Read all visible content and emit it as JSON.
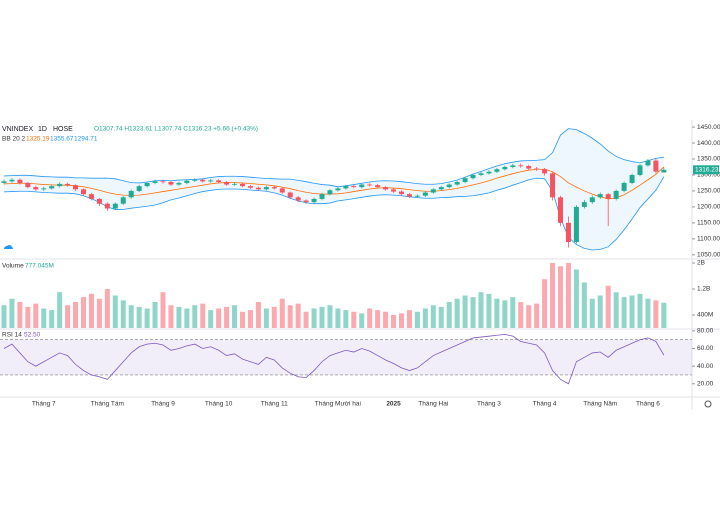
{
  "chart_data": {
    "type": "candlestick",
    "symbol": "VNINDEX",
    "interval": "1D",
    "exchange": "HOSE",
    "ohlc_label": "O1307.74 H1323.61 L1307.74 C1316.23 +5.66 (+0.43%)",
    "up_color": "#22ab94",
    "down_color": "#f7525f",
    "categories": [
      null,
      null,
      null,
      null,
      null,
      "Tháng 7",
      null,
      null,
      null,
      null,
      null,
      null,
      null,
      "Tháng Tám",
      null,
      null,
      null,
      null,
      null,
      null,
      "Tháng 9",
      null,
      null,
      null,
      null,
      null,
      null,
      "Tháng 10",
      null,
      null,
      null,
      null,
      null,
      null,
      "Tháng 11",
      null,
      null,
      null,
      null,
      null,
      null,
      null,
      "Tháng Mười hai",
      null,
      null,
      null,
      null,
      null,
      null,
      "2025",
      null,
      null,
      null,
      null,
      "Tháng Hai",
      null,
      null,
      null,
      null,
      null,
      null,
      "Tháng 3",
      null,
      null,
      null,
      null,
      null,
      null,
      "Tháng 4",
      null,
      null,
      null,
      null,
      null,
      null,
      "Tháng Năm",
      null,
      null,
      null,
      null,
      null,
      "Tháng 6",
      null,
      null
    ],
    "open": [
      1275,
      1280,
      1285,
      1275,
      1262,
      1255,
      1258,
      1265,
      1272,
      1268,
      1255,
      1240,
      1225,
      1210,
      1195,
      1210,
      1230,
      1250,
      1265,
      1275,
      1280,
      1278,
      1270,
      1275,
      1282,
      1285,
      1280,
      1283,
      1278,
      1270,
      1272,
      1265,
      1260,
      1255,
      1262,
      1258,
      1245,
      1230,
      1220,
      1215,
      1225,
      1240,
      1252,
      1258,
      1265,
      1262,
      1270,
      1268,
      1262,
      1255,
      1248,
      1240,
      1232,
      1235,
      1245,
      1255,
      1262,
      1270,
      1278,
      1290,
      1300,
      1305,
      1310,
      1318,
      1325,
      1330,
      1328,
      1320,
      1318,
      1305,
      1230,
      1150,
      1090,
      1200,
      1215,
      1230,
      1240,
      1225,
      1250,
      1275,
      1300,
      1330,
      1345,
      1307.74
    ],
    "high": [
      1286,
      1290,
      1289,
      1278,
      1266,
      1263,
      1270,
      1277,
      1276,
      1271,
      1258,
      1244,
      1228,
      1214,
      1214,
      1234,
      1254,
      1269,
      1279,
      1285,
      1285,
      1282,
      1279,
      1286,
      1290,
      1289,
      1288,
      1287,
      1281,
      1277,
      1275,
      1269,
      1264,
      1266,
      1266,
      1261,
      1248,
      1234,
      1224,
      1229,
      1244,
      1256,
      1262,
      1269,
      1269,
      1274,
      1274,
      1272,
      1265,
      1259,
      1252,
      1244,
      1239,
      1249,
      1259,
      1266,
      1274,
      1282,
      1294,
      1304,
      1310,
      1315,
      1322,
      1329,
      1335,
      1336,
      1332,
      1325,
      1322,
      1308,
      1235,
      1170,
      1205,
      1222,
      1236,
      1245,
      1244,
      1254,
      1279,
      1304,
      1334,
      1350,
      1352,
      1323.61
    ],
    "low": [
      1270,
      1276,
      1270,
      1258,
      1250,
      1250,
      1254,
      1261,
      1263,
      1250,
      1235,
      1220,
      1203,
      1188,
      1190,
      1206,
      1226,
      1246,
      1261,
      1271,
      1273,
      1266,
      1266,
      1271,
      1278,
      1276,
      1276,
      1274,
      1266,
      1266,
      1261,
      1256,
      1250,
      1251,
      1254,
      1241,
      1226,
      1215,
      1210,
      1211,
      1221,
      1236,
      1248,
      1254,
      1258,
      1258,
      1264,
      1258,
      1251,
      1244,
      1236,
      1228,
      1228,
      1231,
      1241,
      1251,
      1258,
      1266,
      1274,
      1286,
      1296,
      1301,
      1306,
      1314,
      1321,
      1323,
      1316,
      1313,
      1298,
      1220,
      1140,
      1073,
      1085,
      1195,
      1210,
      1225,
      1140,
      1220,
      1246,
      1271,
      1296,
      1326,
      1305,
      1307.74
    ],
    "close": [
      1280,
      1285,
      1275,
      1262,
      1255,
      1258,
      1265,
      1272,
      1268,
      1255,
      1240,
      1225,
      1210,
      1195,
      1210,
      1230,
      1250,
      1265,
      1275,
      1280,
      1278,
      1270,
      1275,
      1282,
      1285,
      1280,
      1283,
      1278,
      1270,
      1272,
      1265,
      1260,
      1255,
      1262,
      1258,
      1245,
      1230,
      1220,
      1215,
      1225,
      1240,
      1252,
      1258,
      1265,
      1262,
      1270,
      1268,
      1262,
      1255,
      1248,
      1240,
      1232,
      1235,
      1245,
      1255,
      1262,
      1270,
      1278,
      1290,
      1300,
      1305,
      1310,
      1318,
      1325,
      1330,
      1328,
      1320,
      1318,
      1305,
      1230,
      1150,
      1090,
      1200,
      1215,
      1230,
      1240,
      1225,
      1250,
      1275,
      1300,
      1330,
      1345,
      1310.57,
      1316.23
    ],
    "ylim": [
      1040,
      1469
    ],
    "yticks": [
      {
        "value": 1050,
        "label": "1050.00"
      },
      {
        "value": 1100,
        "label": "1100.00"
      },
      {
        "value": 1150,
        "label": "1150.00"
      },
      {
        "value": 1200,
        "label": "1200.00"
      },
      {
        "value": 1250,
        "label": "1250.00"
      },
      {
        "value": 1300,
        "label": "1300.00"
      },
      {
        "value": 1350,
        "label": "1350.00"
      },
      {
        "value": 1400,
        "label": "1400.00"
      },
      {
        "value": 1450,
        "label": "1450.00"
      }
    ],
    "bb": {
      "name": "BB 20 2",
      "middle_color": "#ff6d00",
      "band_color": "#2196f3",
      "middle": [
        1272,
        1273,
        1274,
        1274,
        1272,
        1270,
        1269,
        1268,
        1268,
        1266,
        1263,
        1258,
        1252,
        1245,
        1240,
        1237,
        1236,
        1237,
        1240,
        1244,
        1248,
        1252,
        1256,
        1260,
        1264,
        1268,
        1272,
        1275,
        1276,
        1276,
        1275,
        1273,
        1271,
        1269,
        1266,
        1262,
        1257,
        1251,
        1246,
        1242,
        1240,
        1240,
        1241,
        1244,
        1248,
        1252,
        1256,
        1259,
        1260,
        1259,
        1257,
        1254,
        1251,
        1249,
        1249,
        1251,
        1254,
        1258,
        1263,
        1269,
        1275,
        1282,
        1290,
        1297,
        1304,
        1310,
        1315,
        1318,
        1318,
        1310,
        1295,
        1275,
        1262,
        1250,
        1240,
        1232,
        1225,
        1228,
        1238,
        1252,
        1268,
        1285,
        1302,
        1325.19
      ],
      "upper": [
        1297,
        1298,
        1299,
        1299,
        1297,
        1295,
        1294,
        1293,
        1293,
        1291,
        1291,
        1290,
        1290,
        1290,
        1288,
        1282,
        1276,
        1275,
        1278,
        1282,
        1283,
        1282,
        1284,
        1285,
        1286,
        1288,
        1292,
        1295,
        1296,
        1296,
        1295,
        1293,
        1291,
        1289,
        1288,
        1287,
        1287,
        1283,
        1279,
        1274,
        1270,
        1268,
        1263,
        1266,
        1270,
        1274,
        1278,
        1281,
        1282,
        1281,
        1279,
        1276,
        1273,
        1271,
        1271,
        1273,
        1278,
        1284,
        1293,
        1303,
        1311,
        1320,
        1328,
        1335,
        1340,
        1344,
        1345,
        1346,
        1348,
        1370,
        1425,
        1445,
        1442,
        1430,
        1415,
        1397,
        1375,
        1358,
        1348,
        1342,
        1338,
        1345,
        1352,
        1355.67
      ],
      "lower": [
        1247,
        1248,
        1249,
        1249,
        1247,
        1245,
        1244,
        1243,
        1243,
        1241,
        1235,
        1226,
        1214,
        1200,
        1192,
        1192,
        1196,
        1199,
        1202,
        1206,
        1213,
        1222,
        1228,
        1235,
        1242,
        1248,
        1252,
        1255,
        1256,
        1256,
        1255,
        1253,
        1251,
        1249,
        1244,
        1237,
        1227,
        1219,
        1213,
        1210,
        1210,
        1212,
        1219,
        1222,
        1226,
        1230,
        1234,
        1237,
        1238,
        1237,
        1235,
        1232,
        1229,
        1227,
        1227,
        1229,
        1230,
        1232,
        1233,
        1235,
        1239,
        1244,
        1252,
        1259,
        1268,
        1276,
        1285,
        1290,
        1288,
        1250,
        1165,
        1105,
        1082,
        1070,
        1065,
        1067,
        1075,
        1098,
        1128,
        1162,
        1198,
        1225,
        1252,
        1294.71
      ]
    },
    "volume": {
      "name": "Volume",
      "legend_value": "777.045M",
      "values": [
        700,
        900,
        800,
        650,
        750,
        600,
        550,
        1100,
        700,
        800,
        950,
        1050,
        900,
        1200,
        1000,
        850,
        700,
        650,
        600,
        800,
        1100,
        700,
        650,
        600,
        700,
        750,
        550,
        600,
        650,
        700,
        500,
        550,
        800,
        600,
        650,
        900,
        700,
        750,
        500,
        600,
        650,
        700,
        600,
        550,
        500,
        450,
        600,
        550,
        500,
        400,
        450,
        550,
        500,
        600,
        700,
        650,
        800,
        900,
        1000,
        950,
        1100,
        1050,
        900,
        850,
        950,
        800,
        700,
        750,
        1500,
        2000,
        1900,
        2000,
        1800,
        1400,
        900,
        1000,
        1300,
        1100,
        950,
        1000,
        1050,
        900,
        850,
        777.045
      ],
      "ylim": [
        0,
        2030
      ],
      "yticks": [
        {
          "value": 400,
          "label": "400M"
        },
        {
          "value": 1200,
          "label": "1.2B"
        },
        {
          "value": 2000,
          "label": "2B"
        }
      ]
    },
    "rsi": {
      "name": "RSI 14",
      "legend_value": "52.50",
      "color": "#7e57c2",
      "band_upper": 70,
      "band_lower": 30,
      "values": [
        60,
        65,
        55,
        45,
        40,
        45,
        50,
        55,
        52,
        42,
        35,
        30,
        28,
        25,
        35,
        45,
        55,
        62,
        65,
        66,
        64,
        58,
        60,
        63,
        65,
        60,
        62,
        58,
        52,
        54,
        48,
        45,
        42,
        50,
        47,
        38,
        32,
        28,
        27,
        35,
        45,
        52,
        55,
        58,
        56,
        60,
        57,
        52,
        47,
        43,
        38,
        35,
        38,
        45,
        52,
        56,
        60,
        64,
        68,
        72,
        73,
        74,
        75,
        76,
        74,
        68,
        66,
        64,
        55,
        35,
        25,
        20,
        45,
        50,
        55,
        56,
        50,
        58,
        62,
        66,
        70,
        72,
        68,
        52.5
      ],
      "ylim": [
        5,
        81
      ],
      "yticks": [
        {
          "value": 20,
          "label": "20.00"
        },
        {
          "value": 40,
          "label": "40.00"
        },
        {
          "value": 60,
          "label": "60.00"
        },
        {
          "value": 80,
          "label": "80.00"
        }
      ]
    }
  }
}
